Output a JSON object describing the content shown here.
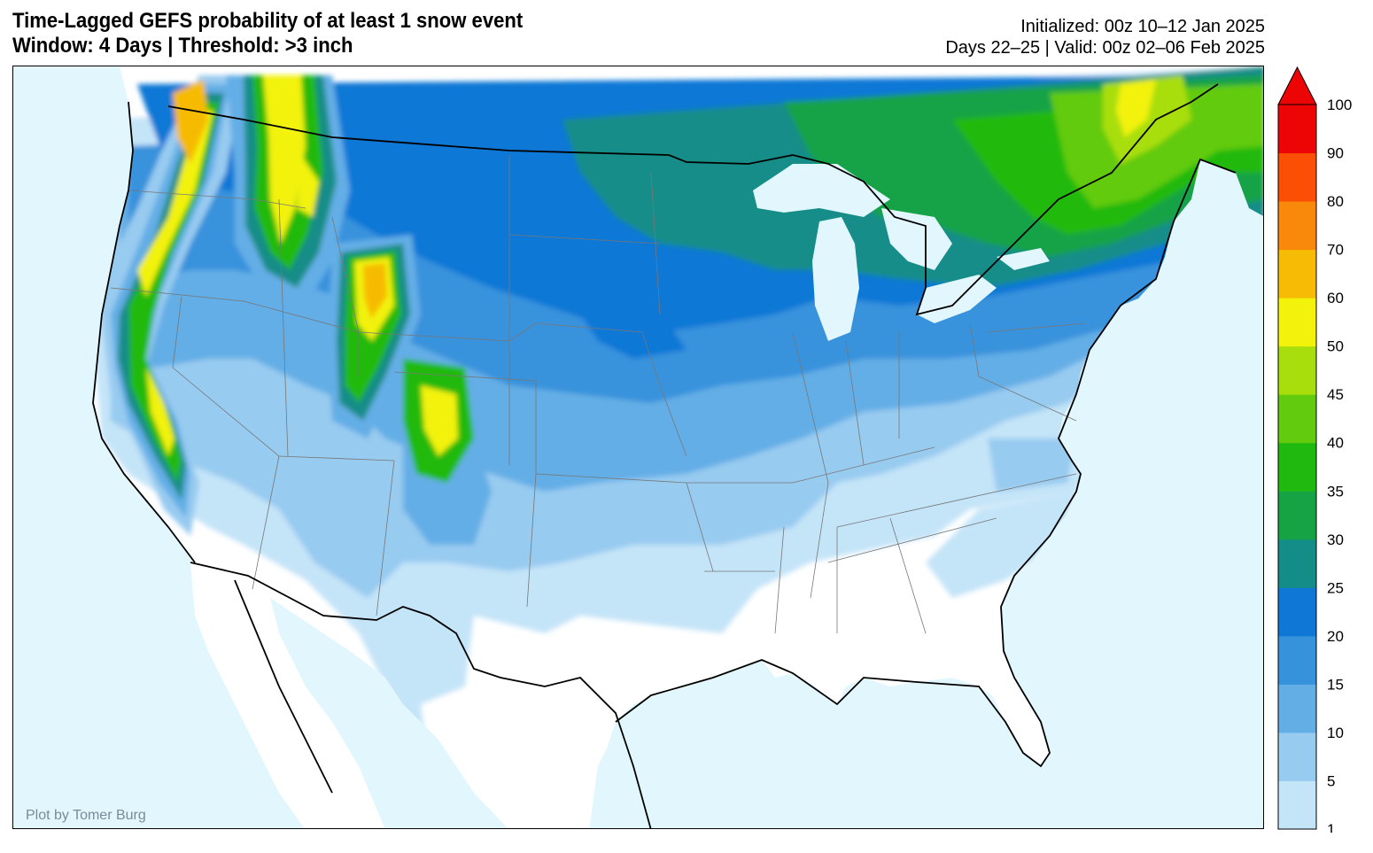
{
  "title": {
    "line1": "Time-Lagged GEFS probability of at least 1 snow event",
    "line2": "Window: 4 Days | Threshold: >3 inch"
  },
  "meta": {
    "initialized": "Initialized: 00z 10–12 Jan 2025",
    "valid": "Days 22–25 | Valid: 00z 02–06 Feb 2025"
  },
  "credit": "Plot by Tomer Burg",
  "colors": {
    "ocean": "#e1f7fd",
    "land": "#ffffff",
    "lake": "#e1f7fd"
  },
  "legend": {
    "levels": [
      {
        "label": "1",
        "color": "#c4e4f8"
      },
      {
        "label": "5",
        "color": "#98cbf0"
      },
      {
        "label": "10",
        "color": "#64aee6"
      },
      {
        "label": "15",
        "color": "#3792dc"
      },
      {
        "label": "20",
        "color": "#0f78d6"
      },
      {
        "label": "25",
        "color": "#138d88"
      },
      {
        "label": "30",
        "color": "#15a346"
      },
      {
        "label": "35",
        "color": "#20b90f"
      },
      {
        "label": "40",
        "color": "#62cb0d"
      },
      {
        "label": "45",
        "color": "#a9de0d"
      },
      {
        "label": "50",
        "color": "#f2f20a"
      },
      {
        "label": "60",
        "color": "#f6bb04"
      },
      {
        "label": "70",
        "color": "#f8890b"
      },
      {
        "label": "80",
        "color": "#fa4f05"
      },
      {
        "label": "90",
        "color": "#ed0404"
      }
    ],
    "max_label": "100"
  }
}
